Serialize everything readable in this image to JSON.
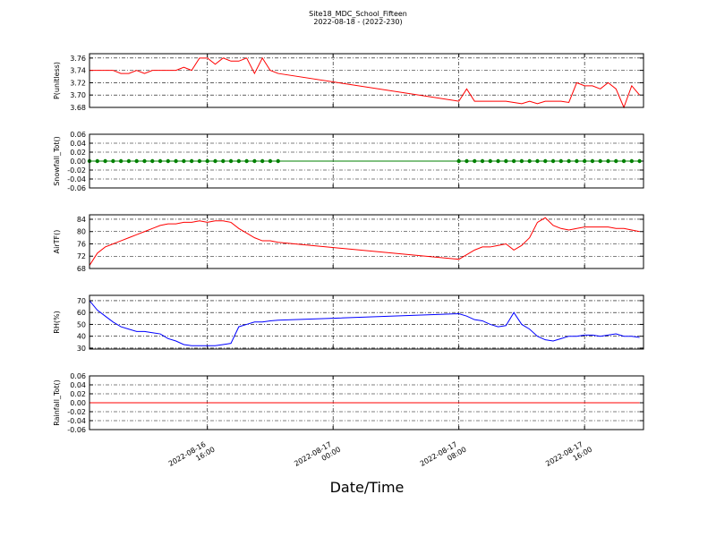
{
  "chart_data": {
    "type": "line",
    "title": "Site18_MDC_School_Fifteen",
    "subtitle": "2022-08-18 - (2022-230)",
    "xlabel": "Date/Time",
    "xlim": [
      "2022-08-16 08:30",
      "2022-08-17 19:45"
    ],
    "xticks": [
      {
        "value": "2022-08-16 16:00",
        "label": [
          "2022-08-16",
          "16:00"
        ]
      },
      {
        "value": "2022-08-17 00:00",
        "label": [
          "2022-08-17",
          "00:00"
        ]
      },
      {
        "value": "2022-08-17 08:00",
        "label": [
          "2022-08-17",
          "08:00"
        ]
      },
      {
        "value": "2022-08-17 16:00",
        "label": [
          "2022-08-17",
          "16:00"
        ]
      }
    ],
    "grid": true,
    "x": [
      "2022-08-16 08:30",
      "2022-08-16 09:00",
      "2022-08-16 09:30",
      "2022-08-16 10:00",
      "2022-08-16 10:30",
      "2022-08-16 11:00",
      "2022-08-16 11:30",
      "2022-08-16 12:00",
      "2022-08-16 12:30",
      "2022-08-16 13:00",
      "2022-08-16 13:30",
      "2022-08-16 14:00",
      "2022-08-16 14:30",
      "2022-08-16 15:00",
      "2022-08-16 15:30",
      "2022-08-16 16:00",
      "2022-08-16 16:30",
      "2022-08-16 17:00",
      "2022-08-16 17:30",
      "2022-08-16 18:00",
      "2022-08-16 18:30",
      "2022-08-16 19:00",
      "2022-08-16 19:30",
      "2022-08-16 20:00",
      "2022-08-16 20:30",
      "2022-08-17 08:00",
      "2022-08-17 08:30",
      "2022-08-17 09:00",
      "2022-08-17 09:30",
      "2022-08-17 10:00",
      "2022-08-17 10:30",
      "2022-08-17 11:00",
      "2022-08-17 11:30",
      "2022-08-17 12:00",
      "2022-08-17 12:30",
      "2022-08-17 13:00",
      "2022-08-17 13:30",
      "2022-08-17 14:00",
      "2022-08-17 14:30",
      "2022-08-17 15:00",
      "2022-08-17 15:30",
      "2022-08-17 16:00",
      "2022-08-17 16:30",
      "2022-08-17 17:00",
      "2022-08-17 17:30",
      "2022-08-17 18:00",
      "2022-08-17 18:30",
      "2022-08-17 19:00",
      "2022-08-17 19:30"
    ],
    "panels": [
      {
        "ylabel": "P(unitless)",
        "ylim": [
          3.68,
          3.767
        ],
        "yticks": [
          {
            "value": 3.68,
            "label": "3.68"
          },
          {
            "value": 3.7,
            "label": "3.70"
          },
          3.72,
          3.74,
          3.76
        ],
        "series": [
          {
            "color": "#ff0000",
            "marker": false,
            "values": [
              3.74,
              3.74,
              3.74,
              3.74,
              3.735,
              3.735,
              3.74,
              3.735,
              3.74,
              3.74,
              3.74,
              3.74,
              3.745,
              3.74,
              3.76,
              3.76,
              3.75,
              3.76,
              3.755,
              3.755,
              3.76,
              3.735,
              3.76,
              3.74,
              3.735,
              3.69,
              3.71,
              3.69,
              3.69,
              3.69,
              3.69,
              3.69,
              3.688,
              3.686,
              3.69,
              3.686,
              3.69,
              3.69,
              3.69,
              3.688,
              3.72,
              3.715,
              3.715,
              3.71,
              3.72,
              3.71,
              3.68,
              3.715,
              3.7
            ]
          }
        ]
      },
      {
        "ylabel": "Snowfall_Tot()",
        "ylim": [
          -0.06,
          0.06
        ],
        "yticks": [
          -0.06,
          -0.04,
          -0.02,
          {
            "value": 0,
            "label": "0.00"
          },
          0.02,
          0.04,
          0.06
        ],
        "series": [
          {
            "color": "#008000",
            "marker": true,
            "values": [
              0,
              0,
              0,
              0,
              0,
              0,
              0,
              0,
              0,
              0,
              0,
              0,
              0,
              0,
              0,
              0,
              0,
              0,
              0,
              0,
              0,
              0,
              0,
              0,
              0,
              0,
              0,
              0,
              0,
              0,
              0,
              0,
              0,
              0,
              0,
              0,
              0,
              0,
              0,
              0,
              0,
              0,
              0,
              0,
              0,
              0,
              0,
              0,
              0
            ]
          }
        ]
      },
      {
        "ylabel": "AirTF()",
        "ylim": [
          68,
          85.45
        ],
        "yticks": [
          68,
          72,
          76,
          80,
          84
        ],
        "series": [
          {
            "color": "#ff0000",
            "marker": false,
            "values": [
              69,
              73,
              75,
              76,
              77,
              78,
              79,
              80,
              81,
              82,
              82.5,
              82.5,
              83,
              83,
              83.5,
              83,
              83.5,
              83.5,
              83,
              81,
              79.5,
              78,
              77,
              77,
              76.5,
              71,
              72.5,
              74,
              75,
              75,
              75.5,
              76,
              74,
              75.5,
              78,
              83,
              84.5,
              82,
              81,
              80.5,
              81,
              81.5,
              81.5,
              81.5,
              81.5,
              81,
              81,
              80.5,
              80
            ]
          }
        ]
      },
      {
        "ylabel": "RH(%)",
        "ylim": [
          29.2,
          74.5
        ],
        "yticks": [
          30,
          40,
          50,
          60,
          70
        ],
        "series": [
          {
            "color": "#0000ff",
            "marker": false,
            "values": [
              70,
              62,
              57,
              52,
              48,
              46,
              44,
              44,
              43,
              42,
              38,
              36,
              33,
              32,
              32,
              32,
              32,
              33,
              34,
              48,
              50,
              52,
              52,
              53,
              53.5,
              59,
              57,
              54,
              53,
              50,
              48,
              49,
              60,
              50,
              46,
              40,
              37,
              36,
              38,
              40,
              40,
              41,
              41,
              40,
              41,
              42,
              40,
              40,
              39
            ]
          }
        ]
      },
      {
        "ylabel": "Rainfall_Tot()",
        "ylim": [
          -0.06,
          0.06
        ],
        "yticks": [
          -0.06,
          -0.04,
          -0.02,
          {
            "value": 0,
            "label": "0.00"
          },
          0.02,
          0.04,
          0.06
        ],
        "series": [
          {
            "color": "#ff0000",
            "marker": false,
            "values": [
              0,
              0,
              0,
              0,
              0,
              0,
              0,
              0,
              0,
              0,
              0,
              0,
              0,
              0,
              0,
              0,
              0,
              0,
              0,
              0,
              0,
              0,
              0,
              0,
              0,
              0,
              0,
              0,
              0,
              0,
              0,
              0,
              0,
              0,
              0,
              0,
              0,
              0,
              0,
              0,
              0,
              0,
              0,
              0,
              0,
              0,
              0,
              0,
              0
            ]
          }
        ]
      }
    ]
  }
}
